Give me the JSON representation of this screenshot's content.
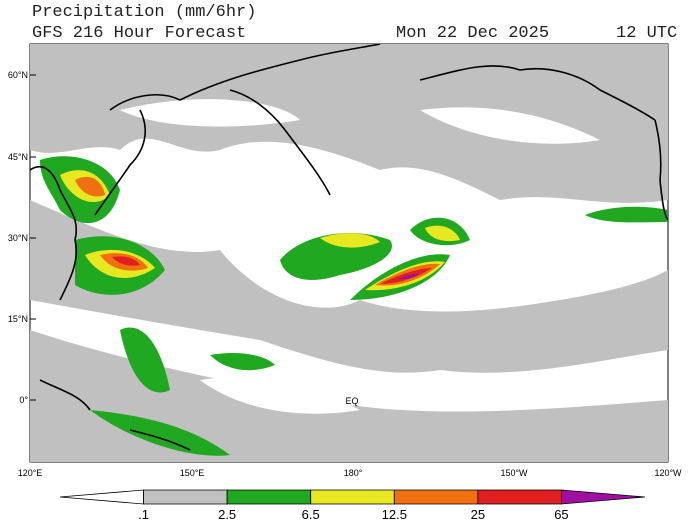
{
  "header": {
    "title": "Precipitation (mm/6hr)",
    "subtitle": "GFS 216 Hour Forecast",
    "date": "Mon 22 Dec 2025",
    "time": "12 UTC"
  },
  "map": {
    "lat_labels": [
      "60°N",
      "45°N",
      "30°N",
      "15°N",
      "0°"
    ],
    "lon_labels": [
      "120°E",
      "150°E",
      "180°",
      "150°W",
      "120°W"
    ],
    "equator_label": "EQ"
  },
  "legend": {
    "labels": [
      ".1",
      "2.5",
      "6.5",
      "12.5",
      "25",
      "65"
    ],
    "colors": [
      "#ffffff",
      "#c0c0c0",
      "#20a820",
      "#e8e820",
      "#f07010",
      "#e02020",
      "#a010a0"
    ]
  }
}
